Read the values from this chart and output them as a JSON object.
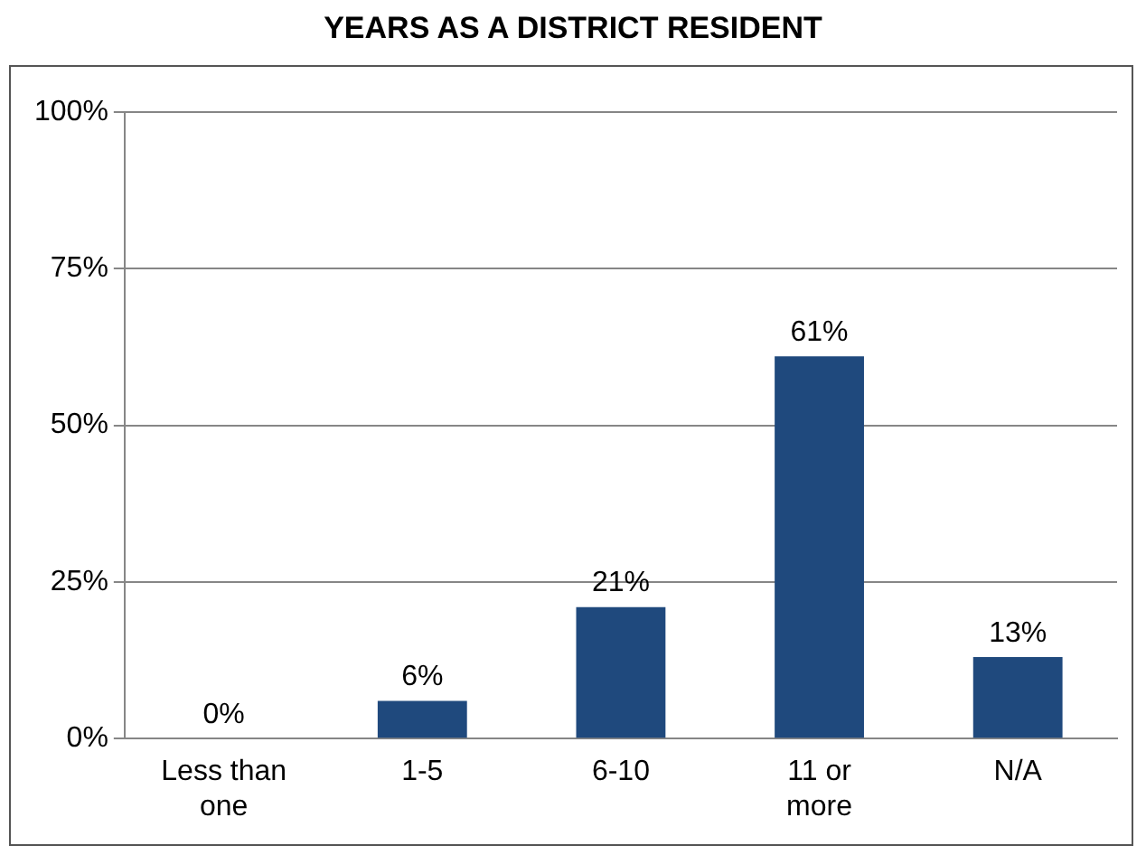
{
  "chart_data": {
    "type": "bar",
    "title": "YEARS AS A DISTRICT RESIDENT",
    "categories": [
      "Less than one",
      "1-5",
      "6-10",
      "11 or more",
      "N/A"
    ],
    "values": [
      0,
      6,
      21,
      61,
      13
    ],
    "value_labels": [
      "0%",
      "6%",
      "21%",
      "61%",
      "13%"
    ],
    "color": "#1f497d",
    "ylim": [
      0,
      100
    ],
    "yticks": [
      {
        "value": 0,
        "label": "0%"
      },
      {
        "value": 25,
        "label": "25%"
      },
      {
        "value": 50,
        "label": "50%"
      },
      {
        "value": 75,
        "label": "75%"
      },
      {
        "value": 100,
        "label": "100%"
      }
    ],
    "grid": "y",
    "legend": false
  }
}
